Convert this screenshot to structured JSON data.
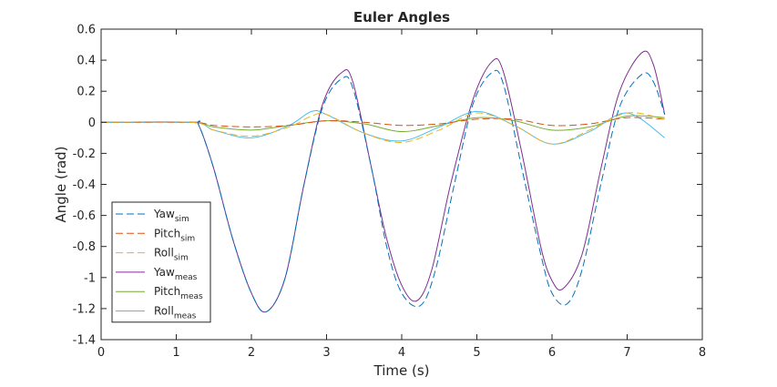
{
  "chart_data": {
    "type": "line",
    "title": "Euler Angles",
    "xlabel": "Time (s)",
    "ylabel": "Angle (rad)",
    "xlim": [
      0,
      8
    ],
    "ylim": [
      -1.4,
      0.6
    ],
    "xticks": [
      0,
      1,
      2,
      3,
      4,
      5,
      6,
      7,
      8
    ],
    "yticks": [
      0.6,
      0.4,
      0.2,
      0,
      -0.2,
      -0.4,
      -0.6,
      -0.8,
      -1,
      -1.2,
      -1.4
    ],
    "xtick_labels": [
      "0",
      "1",
      "2",
      "3",
      "4",
      "5",
      "6",
      "7",
      "8"
    ],
    "ytick_labels": [
      "0.6",
      "0.4",
      "0.2",
      "0",
      "-0.2",
      "-0.4",
      "-0.6",
      "-0.8",
      "-1",
      "-1.2",
      "-1.4"
    ],
    "grid": false,
    "legend_position": "bottom-left",
    "series": [
      {
        "name": "Yaw",
        "subscript": "sim",
        "color": "#0072BD",
        "dash": "dashed",
        "x": [
          0,
          1.2,
          1.3,
          1.5,
          1.75,
          2.0,
          2.2,
          2.45,
          2.7,
          2.95,
          3.2,
          3.35,
          3.6,
          3.8,
          4.0,
          4.25,
          4.45,
          4.7,
          4.95,
          5.2,
          5.35,
          5.6,
          5.85,
          6.0,
          6.2,
          6.4,
          6.65,
          6.9,
          7.2,
          7.35,
          7.5
        ],
        "y": [
          0,
          0,
          -0.02,
          -0.3,
          -0.75,
          -1.1,
          -1.22,
          -1.0,
          -0.4,
          0.1,
          0.28,
          0.22,
          -0.3,
          -0.8,
          -1.1,
          -1.18,
          -0.95,
          -0.4,
          0.12,
          0.32,
          0.25,
          -0.3,
          -0.85,
          -1.1,
          -1.17,
          -0.95,
          -0.4,
          0.1,
          0.31,
          0.26,
          0.05
        ]
      },
      {
        "name": "Pitch",
        "subscript": "sim",
        "color": "#D95319",
        "dash": "dashed",
        "x": [
          0,
          1.2,
          1.5,
          2.0,
          2.5,
          3.0,
          3.5,
          4.0,
          4.5,
          5.0,
          5.5,
          6.0,
          6.5,
          7.0,
          7.5
        ],
        "y": [
          0,
          0,
          -0.02,
          -0.03,
          -0.02,
          0.01,
          0,
          -0.02,
          -0.01,
          0.02,
          0.02,
          -0.02,
          -0.01,
          0.03,
          0.02
        ]
      },
      {
        "name": "Roll",
        "subscript": "sim",
        "color": "#EDB120",
        "dash": "dashed",
        "x": [
          0,
          1.2,
          1.5,
          2.0,
          2.5,
          2.8,
          3.0,
          3.5,
          4.0,
          4.5,
          5.0,
          5.5,
          6.0,
          6.5,
          7.0,
          7.5
        ],
        "y": [
          0,
          0,
          -0.05,
          -0.09,
          -0.03,
          0.04,
          0.05,
          -0.07,
          -0.13,
          -0.05,
          0.06,
          -0.02,
          -0.14,
          -0.05,
          0.06,
          0.02
        ]
      },
      {
        "name": "Yaw",
        "subscript": "meas",
        "color": "#7E2F8E",
        "dash": "solid",
        "x": [
          0,
          1.2,
          1.3,
          1.5,
          1.75,
          2.0,
          2.2,
          2.45,
          2.7,
          2.95,
          3.2,
          3.35,
          3.6,
          3.8,
          4.0,
          4.2,
          4.4,
          4.65,
          4.95,
          5.2,
          5.35,
          5.6,
          5.85,
          6.0,
          6.15,
          6.4,
          6.65,
          6.9,
          7.2,
          7.35,
          7.5
        ],
        "y": [
          0,
          0,
          -0.02,
          -0.3,
          -0.75,
          -1.1,
          -1.22,
          -1.0,
          -0.4,
          0.12,
          0.32,
          0.26,
          -0.3,
          -0.75,
          -1.05,
          -1.15,
          -0.95,
          -0.4,
          0.15,
          0.39,
          0.33,
          -0.2,
          -0.8,
          -1.02,
          -1.07,
          -0.85,
          -0.3,
          0.2,
          0.45,
          0.37,
          0.05
        ]
      },
      {
        "name": "Pitch",
        "subscript": "meas",
        "color": "#77AC30",
        "dash": "solid",
        "x": [
          0,
          1.2,
          1.5,
          2.0,
          2.5,
          3.0,
          3.5,
          4.0,
          4.5,
          5.0,
          5.5,
          6.0,
          6.5,
          7.0,
          7.5
        ],
        "y": [
          0,
          0,
          -0.03,
          -0.05,
          -0.02,
          0.01,
          -0.01,
          -0.06,
          -0.02,
          0.03,
          0.01,
          -0.05,
          -0.03,
          0.04,
          0.03
        ]
      },
      {
        "name": "Roll",
        "subscript": "meas",
        "color": "#4DBEEE",
        "dash": "solid",
        "x": [
          0,
          1.2,
          1.5,
          2.0,
          2.5,
          2.8,
          3.0,
          3.5,
          4.0,
          4.5,
          5.0,
          5.5,
          6.0,
          6.5,
          7.0,
          7.5
        ],
        "y": [
          0,
          0,
          -0.05,
          -0.1,
          -0.02,
          0.07,
          0.05,
          -0.07,
          -0.12,
          -0.03,
          0.07,
          -0.02,
          -0.14,
          -0.06,
          0.06,
          -0.1
        ]
      }
    ]
  }
}
